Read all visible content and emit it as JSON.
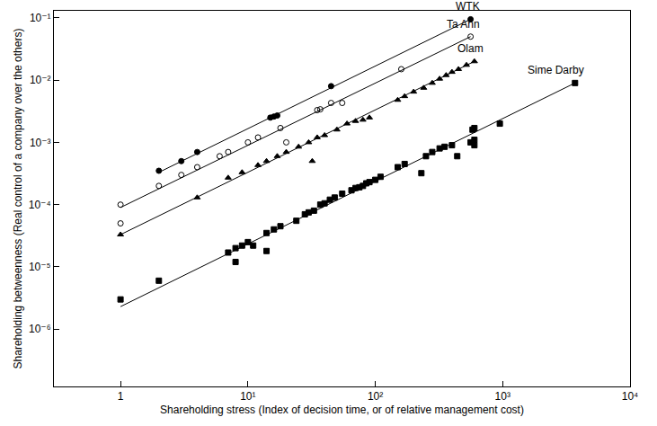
{
  "chart_data": {
    "type": "scatter",
    "log": true,
    "grid": false,
    "x_label": "Shareholding stress (Index of decision time, or of relative management cost)",
    "y_label": "Shareholding betweenness (Real control of a company over the others)",
    "xlim": [
      0.3,
      10000
    ],
    "ylim": [
      1.2e-07,
      0.13
    ],
    "xticks": [
      {
        "value": 1,
        "label": "1"
      },
      {
        "value": 10,
        "label": "10¹"
      },
      {
        "value": 100,
        "label": "10²"
      },
      {
        "value": 1000,
        "label": "10³"
      },
      {
        "value": 10000,
        "label": "10⁴"
      }
    ],
    "yticks": [
      {
        "value": 1e-06,
        "label": "10⁻⁶"
      },
      {
        "value": 1e-05,
        "label": "10⁻⁵"
      },
      {
        "value": 0.0001,
        "label": "10⁻⁴"
      },
      {
        "value": 0.001,
        "label": "10⁻³"
      },
      {
        "value": 0.01,
        "label": "10⁻²"
      },
      {
        "value": 0.1,
        "label": "10⁻¹"
      }
    ],
    "series": [
      {
        "name": "WTK",
        "color": "#000000",
        "marker": "circle",
        "x": [
          2,
          3,
          4,
          15,
          16,
          17,
          45,
          560
        ],
        "values": [
          0.00035,
          0.0005,
          0.0007,
          0.0025,
          0.0026,
          0.0027,
          0.008,
          0.095
        ],
        "fit_x": [
          2,
          560
        ],
        "fit_values": [
          0.00033,
          0.095
        ]
      },
      {
        "name": "Ta Ann",
        "color": "#000000",
        "marker": "circle-open",
        "x": [
          1,
          1,
          2,
          3,
          4,
          6,
          7,
          10,
          12,
          18,
          20,
          35,
          37,
          45,
          55,
          160,
          560
        ],
        "values": [
          0.0001,
          5e-05,
          0.0002,
          0.0003,
          0.0004,
          0.0006,
          0.0007,
          0.001,
          0.0012,
          0.0017,
          0.001,
          0.0033,
          0.0034,
          0.0043,
          0.0043,
          0.015,
          0.05
        ],
        "fit_x": [
          1,
          560
        ],
        "fit_values": [
          9e-05,
          0.05
        ]
      },
      {
        "name": "Olam",
        "color": "#000000",
        "marker": "triangle-up",
        "x": [
          1,
          4,
          7,
          9,
          12,
          14,
          17,
          20,
          25,
          30,
          32,
          35,
          40,
          50,
          60,
          70,
          80,
          90,
          150,
          170,
          200,
          240,
          280,
          320,
          360,
          400,
          450,
          520,
          600
        ],
        "values": [
          3.3e-05,
          0.00013,
          0.00027,
          0.00033,
          0.00043,
          0.0005,
          0.0006,
          0.0007,
          0.00085,
          0.001,
          0.0005,
          0.0012,
          0.0013,
          0.0016,
          0.002,
          0.0022,
          0.0023,
          0.0025,
          0.0048,
          0.0055,
          0.0065,
          0.0075,
          0.009,
          0.0105,
          0.012,
          0.0135,
          0.015,
          0.0175,
          0.02
        ],
        "fit_x": [
          1,
          600
        ],
        "fit_values": [
          3.3e-05,
          0.02
        ]
      },
      {
        "name": "Sime Darby",
        "color": "#000000",
        "marker": "square",
        "x": [
          1,
          2,
          7,
          8,
          8,
          9,
          10,
          11,
          14,
          14,
          16,
          18,
          24,
          28,
          30,
          33,
          37,
          40,
          44,
          48,
          55,
          65,
          70,
          75,
          80,
          85,
          90,
          100,
          110,
          150,
          170,
          230,
          250,
          280,
          320,
          350,
          400,
          440,
          560,
          600,
          580,
          600,
          600,
          950,
          3700
        ],
        "values": [
          3e-06,
          6e-06,
          1.7e-05,
          1.2e-05,
          2e-05,
          2.2e-05,
          2.5e-05,
          2.2e-05,
          1.8e-05,
          3.5e-05,
          4e-05,
          4.5e-05,
          5.5e-05,
          7e-05,
          7.5e-05,
          8e-05,
          0.0001,
          0.000105,
          0.00012,
          0.00013,
          0.00015,
          0.00017,
          0.000185,
          0.00019,
          0.0002,
          0.00022,
          0.00023,
          0.00025,
          0.00028,
          0.0004,
          0.00045,
          0.00032,
          0.0006,
          0.0007,
          0.0008,
          0.00085,
          0.0009,
          0.0006,
          0.001,
          0.0011,
          0.0016,
          0.0017,
          0.0009,
          0.002,
          0.009
        ],
        "fit_x": [
          1,
          3700
        ],
        "fit_values": [
          2.3e-06,
          0.009
        ]
      }
    ]
  }
}
